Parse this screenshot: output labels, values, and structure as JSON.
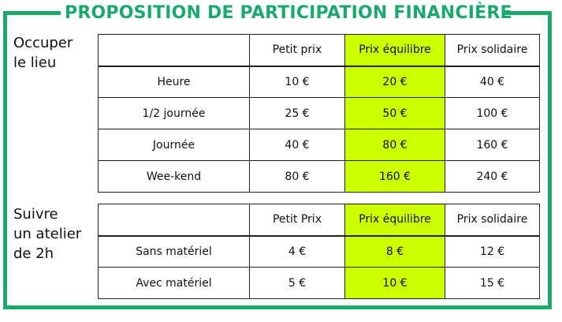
{
  "title": "PROPOSITION DE PARTICIPATION FINANCIÈRE",
  "colors": {
    "accent": "#1aa86c",
    "highlight": "#ccff00",
    "border": "#222222"
  },
  "sections": [
    {
      "label_lines": [
        "Occuper",
        "le lieu"
      ],
      "headers": [
        "",
        "Petit prix",
        "Prix équilibre",
        "Prix solidaire"
      ],
      "rows": [
        {
          "label": "Heure",
          "values": [
            "10 €",
            "20 €",
            "40 €"
          ]
        },
        {
          "label": "1/2 journée",
          "values": [
            "25 €",
            "50 €",
            "100 €"
          ]
        },
        {
          "label": "Journée",
          "values": [
            "40 €",
            "80 €",
            "160 €"
          ]
        },
        {
          "label": "Wee-kend",
          "values": [
            "80 €",
            "160 €",
            "240 €"
          ]
        }
      ]
    },
    {
      "label_lines": [
        "Suivre",
        "un atelier",
        "de 2h"
      ],
      "headers": [
        "",
        "Petit Prix",
        "Prix équilibre",
        "Prix solidaire"
      ],
      "rows": [
        {
          "label": "Sans matériel",
          "values": [
            "4 €",
            "8 €",
            "12 €"
          ]
        },
        {
          "label": "Avec matériel",
          "values": [
            "5 €",
            "10 €",
            "15 €"
          ]
        }
      ]
    }
  ]
}
